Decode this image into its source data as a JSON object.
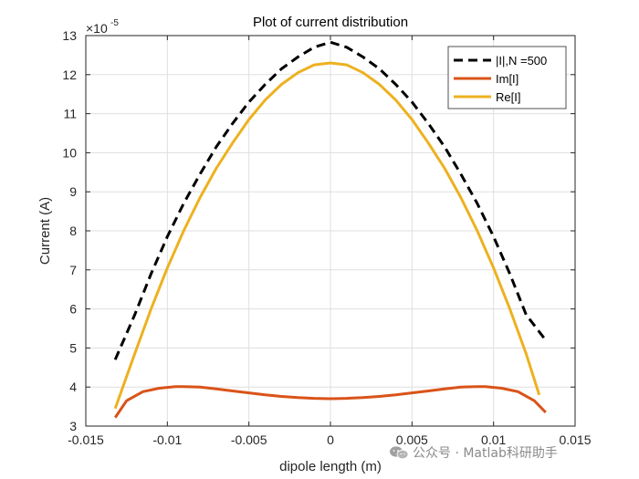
{
  "chart_data": {
    "type": "line",
    "title": "Plot of current distribution",
    "xlabel": "dipole length (m)",
    "ylabel": "Current (A)",
    "y_exponent_label": "×10",
    "y_exponent_power": "-5",
    "xlim": [
      -0.015,
      0.015
    ],
    "ylim": [
      3,
      13
    ],
    "xticks": [
      -0.015,
      -0.01,
      -0.005,
      0,
      0.005,
      0.01,
      0.015
    ],
    "xtick_labels": [
      "-0.015",
      "-0.01",
      "-0.005",
      "0",
      "0.005",
      "0.01",
      "0.015"
    ],
    "yticks": [
      3,
      4,
      5,
      6,
      7,
      8,
      9,
      10,
      11,
      12,
      13
    ],
    "ytick_labels": [
      "3",
      "4",
      "5",
      "6",
      "7",
      "8",
      "9",
      "10",
      "11",
      "12",
      "13"
    ],
    "grid": true,
    "legend_position": "top-right",
    "series": [
      {
        "name": "|I|,N =500",
        "color": "#000000",
        "style": "dashed",
        "x": [
          -0.0132,
          -0.012,
          -0.011,
          -0.01,
          -0.009,
          -0.008,
          -0.007,
          -0.006,
          -0.005,
          -0.004,
          -0.003,
          -0.002,
          -0.001,
          0,
          0.001,
          0.002,
          0.003,
          0.004,
          0.005,
          0.006,
          0.007,
          0.008,
          0.009,
          0.01,
          0.011,
          0.012,
          0.0132
        ],
        "y": [
          4.7,
          5.85,
          6.9,
          7.85,
          8.7,
          9.45,
          10.15,
          10.75,
          11.3,
          11.75,
          12.15,
          12.45,
          12.7,
          12.83,
          12.7,
          12.45,
          12.15,
          11.75,
          11.3,
          10.75,
          10.15,
          9.45,
          8.7,
          7.85,
          6.9,
          5.85,
          5.2
        ]
      },
      {
        "name": "Im[I]",
        "color": "#d95319",
        "style": "solid",
        "x": [
          -0.0132,
          -0.0125,
          -0.0115,
          -0.0105,
          -0.0095,
          -0.009,
          -0.008,
          -0.007,
          -0.006,
          -0.005,
          -0.004,
          -0.003,
          -0.002,
          -0.001,
          0,
          0.001,
          0.002,
          0.003,
          0.004,
          0.005,
          0.006,
          0.007,
          0.008,
          0.009,
          0.0095,
          0.0105,
          0.0115,
          0.0125,
          0.0132
        ],
        "y": [
          3.22,
          3.65,
          3.88,
          3.97,
          4.01,
          4.01,
          4.0,
          3.95,
          3.9,
          3.85,
          3.8,
          3.76,
          3.73,
          3.71,
          3.7,
          3.71,
          3.73,
          3.76,
          3.8,
          3.85,
          3.9,
          3.95,
          4.0,
          4.01,
          4.01,
          3.97,
          3.88,
          3.65,
          3.35
        ]
      },
      {
        "name": "Re[I]",
        "color": "#edb120",
        "style": "solid",
        "x": [
          -0.0132,
          -0.012,
          -0.011,
          -0.01,
          -0.009,
          -0.008,
          -0.007,
          -0.006,
          -0.005,
          -0.004,
          -0.003,
          -0.002,
          -0.001,
          0,
          0.001,
          0.002,
          0.003,
          0.004,
          0.005,
          0.006,
          0.007,
          0.008,
          0.009,
          0.01,
          0.011,
          0.012,
          0.0128
        ],
        "y": [
          3.45,
          4.85,
          6.0,
          7.05,
          8.0,
          8.85,
          9.6,
          10.25,
          10.85,
          11.35,
          11.75,
          12.05,
          12.25,
          12.3,
          12.25,
          12.05,
          11.75,
          11.35,
          10.85,
          10.25,
          9.6,
          8.85,
          8.0,
          7.05,
          6.0,
          4.85,
          3.8
        ]
      }
    ]
  },
  "watermark": {
    "text": "公众号 · Matlab科研助手",
    "icon": "wechat-icon"
  }
}
